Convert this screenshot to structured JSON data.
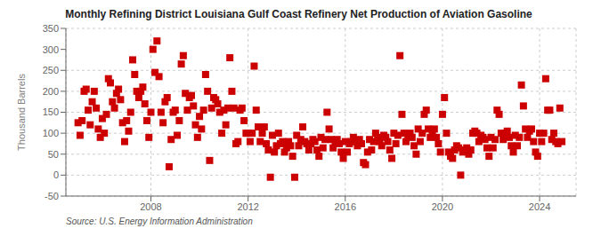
{
  "chart_data": {
    "type": "scatter",
    "title": "Monthly Refining District Louisiana Gulf Coast Refinery Net Production of Aviation Gasoline",
    "y_label": "Thousand Barrels",
    "annotations": [
      "Source: U.S. Energy Information Administration"
    ],
    "color": "#cc0000",
    "marker": "square",
    "grid": true,
    "xlim": [
      2004.5,
      2025.5
    ],
    "xticks": [
      2008,
      2012,
      2016,
      2020,
      2024
    ],
    "ylim": [
      -50,
      350
    ],
    "yticks": [
      -50,
      0,
      50,
      100,
      150,
      200,
      250,
      300,
      350
    ],
    "x": [
      2005.0,
      2005.083,
      2005.167,
      2005.25,
      2005.333,
      2005.417,
      2005.5,
      2005.583,
      2005.667,
      2005.75,
      2005.833,
      2005.917,
      2006.0,
      2006.083,
      2006.167,
      2006.25,
      2006.333,
      2006.417,
      2006.5,
      2006.583,
      2006.667,
      2006.75,
      2006.833,
      2006.917,
      2007.0,
      2007.083,
      2007.167,
      2007.25,
      2007.333,
      2007.417,
      2007.5,
      2007.583,
      2007.667,
      2007.75,
      2007.833,
      2007.917,
      2008.0,
      2008.083,
      2008.167,
      2008.25,
      2008.333,
      2008.417,
      2008.5,
      2008.583,
      2008.667,
      2008.75,
      2008.833,
      2008.917,
      2009.0,
      2009.083,
      2009.167,
      2009.25,
      2009.333,
      2009.417,
      2009.5,
      2009.583,
      2009.667,
      2009.75,
      2009.833,
      2009.917,
      2010.0,
      2010.083,
      2010.167,
      2010.25,
      2010.333,
      2010.417,
      2010.5,
      2010.583,
      2010.667,
      2010.75,
      2010.833,
      2010.917,
      2011.0,
      2011.083,
      2011.167,
      2011.25,
      2011.333,
      2011.417,
      2011.5,
      2011.583,
      2011.667,
      2011.75,
      2011.833,
      2011.917,
      2012.0,
      2012.083,
      2012.167,
      2012.25,
      2012.333,
      2012.417,
      2012.5,
      2012.583,
      2012.667,
      2012.75,
      2012.833,
      2012.917,
      2013.0,
      2013.083,
      2013.167,
      2013.25,
      2013.333,
      2013.417,
      2013.5,
      2013.583,
      2013.667,
      2013.75,
      2013.833,
      2013.917,
      2014.0,
      2014.083,
      2014.167,
      2014.25,
      2014.333,
      2014.417,
      2014.5,
      2014.583,
      2014.667,
      2014.75,
      2014.833,
      2014.917,
      2015.0,
      2015.083,
      2015.167,
      2015.25,
      2015.333,
      2015.417,
      2015.5,
      2015.583,
      2015.667,
      2015.75,
      2015.833,
      2015.917,
      2016.0,
      2016.083,
      2016.167,
      2016.25,
      2016.333,
      2016.417,
      2016.5,
      2016.583,
      2016.667,
      2016.75,
      2016.833,
      2016.917,
      2017.0,
      2017.083,
      2017.167,
      2017.25,
      2017.333,
      2017.417,
      2017.5,
      2017.583,
      2017.667,
      2017.75,
      2017.833,
      2017.917,
      2018.0,
      2018.083,
      2018.167,
      2018.25,
      2018.333,
      2018.417,
      2018.5,
      2018.583,
      2018.667,
      2018.75,
      2018.833,
      2018.917,
      2019.0,
      2019.083,
      2019.167,
      2019.25,
      2019.333,
      2019.417,
      2019.5,
      2019.583,
      2019.667,
      2019.75,
      2019.833,
      2019.917,
      2020.0,
      2020.083,
      2020.167,
      2020.25,
      2020.333,
      2020.417,
      2020.5,
      2020.583,
      2020.667,
      2020.75,
      2020.833,
      2020.917,
      2021.0,
      2021.083,
      2021.167,
      2021.25,
      2021.333,
      2021.417,
      2021.5,
      2021.583,
      2021.667,
      2021.75,
      2021.833,
      2021.917,
      2022.0,
      2022.083,
      2022.167,
      2022.25,
      2022.333,
      2022.417,
      2022.5,
      2022.583,
      2022.667,
      2022.75,
      2022.833,
      2022.917,
      2023.0,
      2023.083,
      2023.167,
      2023.25,
      2023.333,
      2023.417,
      2023.5,
      2023.583,
      2023.667,
      2023.75,
      2023.833,
      2023.917,
      2024.0,
      2024.083,
      2024.167,
      2024.25,
      2024.333,
      2024.417,
      2024.5,
      2024.583,
      2024.667,
      2024.75,
      2024.833,
      2024.917
    ],
    "values": [
      125,
      95,
      130,
      200,
      205,
      155,
      120,
      175,
      200,
      160,
      110,
      90,
      135,
      100,
      145,
      230,
      220,
      175,
      160,
      195,
      205,
      180,
      125,
      80,
      130,
      105,
      150,
      275,
      240,
      200,
      185,
      200,
      210,
      170,
      130,
      90,
      150,
      300,
      245,
      320,
      235,
      150,
      125,
      175,
      185,
      20,
      85,
      150,
      155,
      95,
      130,
      265,
      285,
      195,
      155,
      185,
      190,
      165,
      120,
      90,
      140,
      110,
      155,
      240,
      200,
      35,
      160,
      185,
      180,
      170,
      150,
      100,
      155,
      120,
      160,
      280,
      200,
      160,
      75,
      80,
      155,
      160,
      130,
      100,
      100,
      80,
      100,
      260,
      155,
      115,
      80,
      100,
      115,
      75,
      60,
      -5,
      95,
      55,
      70,
      100,
      75,
      80,
      55,
      65,
      80,
      70,
      45,
      -5,
      95,
      70,
      85,
      115,
      80,
      75,
      60,
      75,
      85,
      80,
      60,
      45,
      90,
      65,
      85,
      150,
      110,
      85,
      65,
      80,
      85,
      75,
      55,
      40,
      80,
      55,
      75,
      80,
      90,
      80,
      70,
      85,
      75,
      30,
      25,
      55,
      85,
      60,
      80,
      100,
      90,
      80,
      70,
      95,
      90,
      80,
      60,
      40,
      100,
      75,
      95,
      285,
      145,
      100,
      80,
      95,
      100,
      90,
      70,
      50,
      110,
      80,
      100,
      145,
      155,
      110,
      90,
      105,
      110,
      90,
      75,
      55,
      145,
      185,
      100,
      55,
      45,
      40,
      60,
      70,
      65,
      0,
      55,
      60,
      65,
      50,
      60,
      100,
      105,
      100,
      80,
      95,
      90,
      85,
      65,
      45,
      90,
      65,
      85,
      155,
      145,
      100,
      85,
      100,
      105,
      90,
      70,
      55,
      95,
      70,
      90,
      215,
      165,
      110,
      90,
      105,
      110,
      80,
      55,
      45,
      100,
      80,
      100,
      230,
      155,
      155,
      85,
      100,
      80,
      75,
      160,
      80
    ]
  }
}
